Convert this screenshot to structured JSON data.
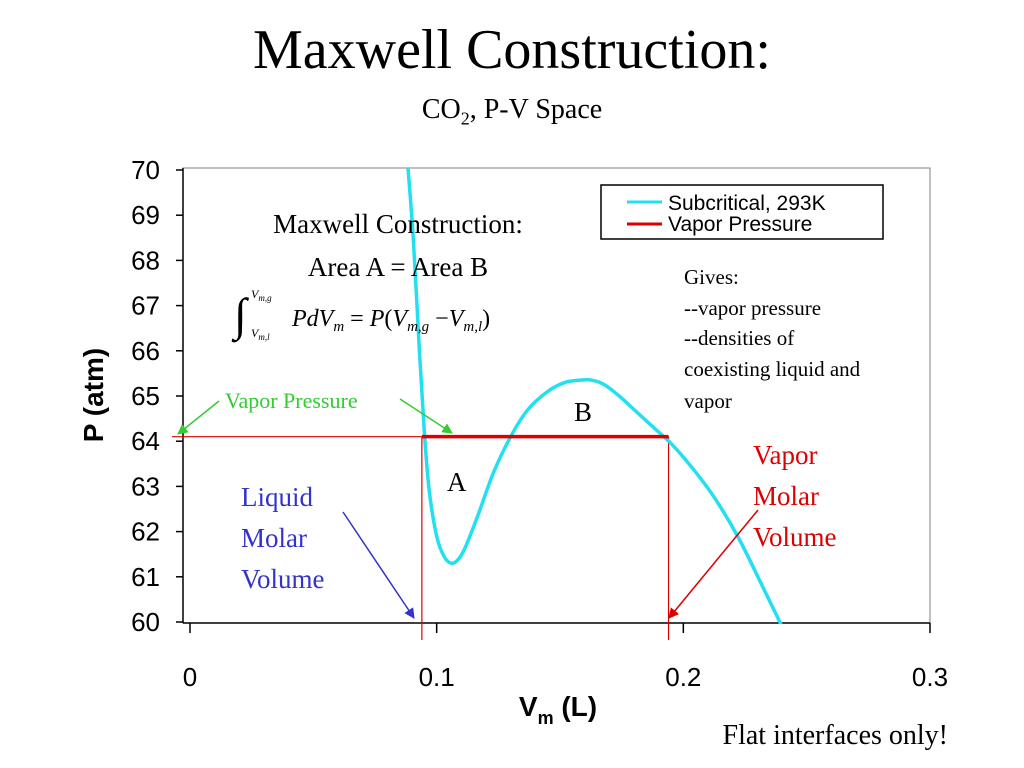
{
  "slide": {
    "title": "Maxwell Construction:",
    "subtitle_main": "CO",
    "subtitle_sub": "2",
    "subtitle_rest": ", P-V Space",
    "footer": "Flat interfaces only!"
  },
  "chart_data": {
    "type": "line",
    "xlabel_main": "V",
    "xlabel_sub": "m",
    "xlabel_rest": " (L)",
    "ylabel": "P (atm)",
    "xlim": [
      0,
      0.3
    ],
    "ylim": [
      60,
      70
    ],
    "x_ticks": [
      0,
      0.1,
      0.2,
      0.3
    ],
    "x_tick_labels": [
      "0",
      "0.1",
      "0.2",
      "0.3"
    ],
    "y_ticks": [
      60,
      61,
      62,
      63,
      64,
      65,
      66,
      67,
      68,
      69,
      70
    ],
    "y_tick_labels": [
      "60",
      "61",
      "62",
      "63",
      "64",
      "65",
      "66",
      "67",
      "68",
      "69",
      "70"
    ],
    "series": [
      {
        "name": "Subcritical, 293K",
        "color": "#22E0F0",
        "x": [
          0.088,
          0.0905,
          0.093,
          0.095,
          0.097,
          0.1,
          0.103,
          0.106,
          0.109,
          0.112,
          0.117,
          0.123,
          0.13,
          0.137,
          0.145,
          0.152,
          0.158,
          0.163,
          0.168,
          0.174,
          0.181,
          0.188,
          0.195,
          0.203,
          0.212,
          0.222,
          0.232,
          0.24
        ],
        "y": [
          70.3,
          68.5,
          66.0,
          64.2,
          62.9,
          61.9,
          61.45,
          61.3,
          61.4,
          61.7,
          62.4,
          63.3,
          64.1,
          64.7,
          65.1,
          65.3,
          65.35,
          65.35,
          65.25,
          65.0,
          64.65,
          64.3,
          63.95,
          63.45,
          62.8,
          61.9,
          60.8,
          59.9
        ]
      },
      {
        "name": "Vapor Pressure",
        "color": "#DD0000",
        "x": [
          0.094,
          0.194
        ],
        "y": [
          64.1,
          64.1
        ]
      }
    ],
    "vapor_pressure_value": 64.1,
    "liquid_molar_volume": 0.094,
    "vapor_molar_volume": 0.194,
    "legend_position": "top-right",
    "grid": false
  },
  "annotations": {
    "box_title": "Maxwell Construction:",
    "box_line2": "Area A = Area B",
    "area_a": "A",
    "area_b": "B",
    "gives_title": "Gives:",
    "gives_items": [
      "--vapor pressure",
      "--densities of",
      "coexisting liquid and",
      "vapor"
    ],
    "vapor_pressure_label": "Vapor Pressure",
    "liquid_label": [
      "Liquid",
      "Molar",
      "Volume"
    ],
    "vapor_label": [
      "Vapor",
      "Molar",
      "Volume"
    ],
    "colors": {
      "liquid": "#3333CC",
      "vapor": "#DD0000",
      "vapor_pressure": "#33CC33"
    }
  }
}
